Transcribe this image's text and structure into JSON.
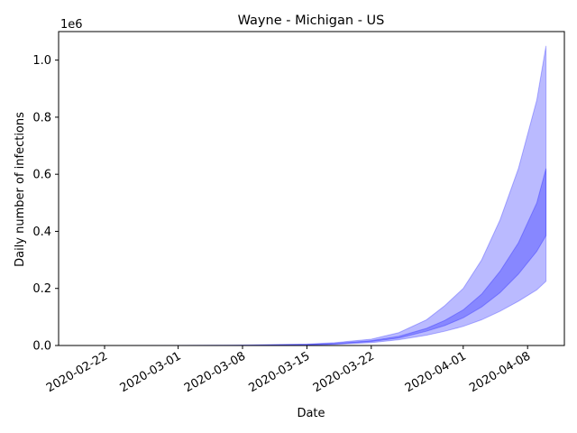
{
  "chart_data": {
    "type": "area",
    "title": "Wayne - Michigan - US",
    "xlabel": "Date",
    "ylabel": "Daily number of infections",
    "y_offset_label": "1e6",
    "x_tick_labels": [
      "2020-02-22",
      "2020-03-01",
      "2020-03-08",
      "2020-03-15",
      "2020-03-22",
      "2020-04-01",
      "2020-04-08"
    ],
    "x_tick_dates": [
      "2020-02-22",
      "2020-03-01",
      "2020-03-08",
      "2020-03-15",
      "2020-03-22",
      "2020-04-01",
      "2020-04-08"
    ],
    "y_tick_labels": [
      "0.0",
      "0.2",
      "0.4",
      "0.6",
      "0.8",
      "1.0"
    ],
    "y_tick_values": [
      0,
      200000,
      400000,
      600000,
      800000,
      1000000
    ],
    "xlim": [
      "2020-02-17",
      "2020-04-12"
    ],
    "ylim": [
      0,
      1100000
    ],
    "grid": false,
    "band_color": "#0000ff",
    "x": [
      "2020-02-20",
      "2020-03-01",
      "2020-03-08",
      "2020-03-15",
      "2020-03-18",
      "2020-03-22",
      "2020-03-25",
      "2020-03-28",
      "2020-03-30",
      "2020-04-01",
      "2020-04-03",
      "2020-04-05",
      "2020-04-07",
      "2020-04-09",
      "2020-04-10"
    ],
    "series": [
      {
        "band": "outer",
        "opacity": 0.27,
        "lower": [
          0,
          0,
          0,
          1000,
          4000,
          10000,
          20000,
          36000,
          50000,
          67000,
          90000,
          120000,
          155000,
          195000,
          225000
        ],
        "upper": [
          0,
          500,
          1500,
          5000,
          10000,
          22000,
          45000,
          90000,
          140000,
          200000,
          300000,
          440000,
          620000,
          860000,
          1050000
        ]
      },
      {
        "band": "inner",
        "opacity": 0.27,
        "lower": [
          0,
          0,
          0,
          2000,
          5000,
          14000,
          26000,
          50000,
          70000,
          97000,
          135000,
          185000,
          250000,
          330000,
          385000
        ],
        "upper": [
          0,
          0,
          1000,
          3500,
          7000,
          17000,
          32000,
          60000,
          88000,
          125000,
          180000,
          260000,
          360000,
          500000,
          620000
        ]
      }
    ]
  }
}
